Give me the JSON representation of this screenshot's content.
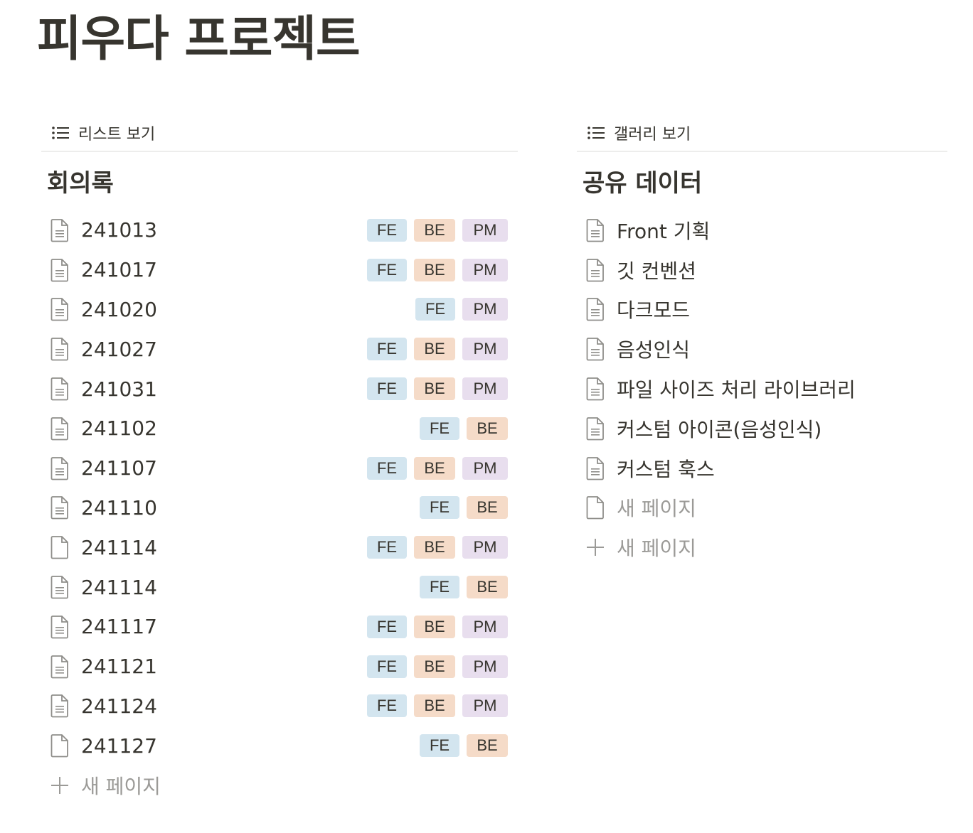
{
  "page": {
    "title": "피우다 프로젝트"
  },
  "left": {
    "view_label": "리스트 보기",
    "db_title": "회의록",
    "rows": [
      {
        "title": "241013",
        "tags": [
          "FE",
          "BE",
          "PM"
        ],
        "icon": "doc-lines-icon"
      },
      {
        "title": "241017",
        "tags": [
          "FE",
          "BE",
          "PM"
        ],
        "icon": "doc-lines-icon"
      },
      {
        "title": "241020",
        "tags": [
          "FE",
          "PM"
        ],
        "icon": "doc-lines-icon"
      },
      {
        "title": "241027",
        "tags": [
          "FE",
          "BE",
          "PM"
        ],
        "icon": "doc-lines-icon"
      },
      {
        "title": "241031",
        "tags": [
          "FE",
          "BE",
          "PM"
        ],
        "icon": "doc-lines-icon"
      },
      {
        "title": "241102",
        "tags": [
          "FE",
          "BE"
        ],
        "icon": "doc-lines-icon"
      },
      {
        "title": "241107",
        "tags": [
          "FE",
          "BE",
          "PM"
        ],
        "icon": "doc-lines-icon"
      },
      {
        "title": "241110",
        "tags": [
          "FE",
          "BE"
        ],
        "icon": "doc-lines-icon"
      },
      {
        "title": "241114",
        "tags": [
          "FE",
          "BE",
          "PM"
        ],
        "icon": "doc-blank-icon"
      },
      {
        "title": "241114",
        "tags": [
          "FE",
          "BE"
        ],
        "icon": "doc-lines-icon"
      },
      {
        "title": "241117",
        "tags": [
          "FE",
          "BE",
          "PM"
        ],
        "icon": "doc-lines-icon"
      },
      {
        "title": "241121",
        "tags": [
          "FE",
          "BE",
          "PM"
        ],
        "icon": "doc-lines-icon"
      },
      {
        "title": "241124",
        "tags": [
          "FE",
          "BE",
          "PM"
        ],
        "icon": "doc-lines-icon"
      },
      {
        "title": "241127",
        "tags": [
          "FE",
          "BE"
        ],
        "icon": "doc-blank-icon"
      }
    ],
    "add_label": "새 페이지"
  },
  "right": {
    "view_label": "갤러리 보기",
    "db_title": "공유 데이터",
    "rows": [
      {
        "title": "Front 기획",
        "icon": "doc-lines-icon",
        "muted": false
      },
      {
        "title": "깃 컨벤션",
        "icon": "doc-lines-icon",
        "muted": false
      },
      {
        "title": "다크모드",
        "icon": "doc-lines-icon",
        "muted": false
      },
      {
        "title": "음성인식",
        "icon": "doc-lines-icon",
        "muted": false
      },
      {
        "title": "파일 사이즈 처리 라이브러리",
        "icon": "doc-lines-icon",
        "muted": false
      },
      {
        "title": "커스텀 아이콘(음성인식)",
        "icon": "doc-lines-icon",
        "muted": false
      },
      {
        "title": "커스텀 훅스",
        "icon": "doc-lines-icon",
        "muted": false
      },
      {
        "title": "새 페이지",
        "icon": "doc-blank-icon",
        "muted": true
      }
    ],
    "add_label": "새 페이지"
  },
  "icons": {
    "list_view": "list-view-icon",
    "doc_lines": "doc-lines-icon",
    "doc_blank": "doc-blank-icon",
    "plus": "plus-icon"
  },
  "colors": {
    "text": "#37352f",
    "muted": "#9b9a97",
    "divider": "#ededec",
    "tag_FE": "#d3e5ef",
    "tag_BE": "#f5dbc8",
    "tag_PM": "#e8deee"
  }
}
